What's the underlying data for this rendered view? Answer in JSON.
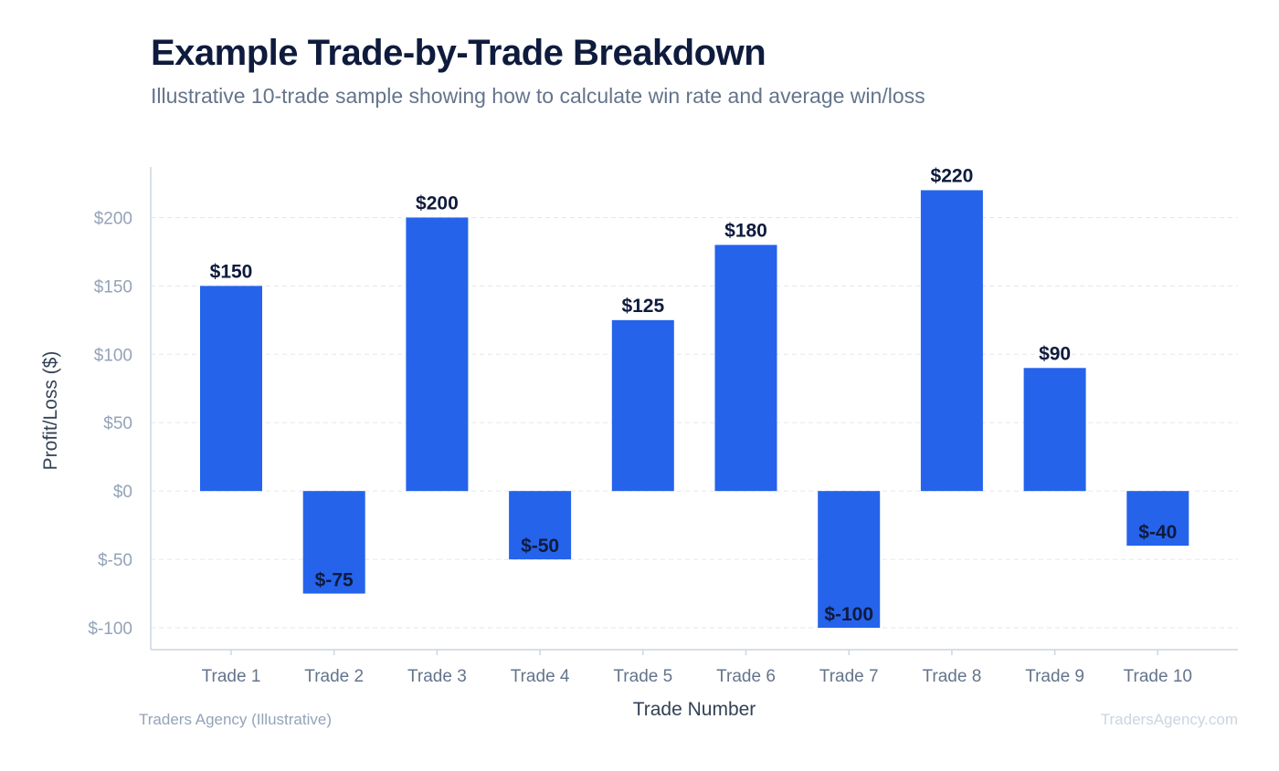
{
  "header": {
    "title": "Example Trade-by-Trade Breakdown",
    "subtitle": "Illustrative 10-trade sample showing how to calculate win rate and average win/loss"
  },
  "footer": {
    "source": "Traders Agency (Illustrative)",
    "brand": "TradersAgency.com"
  },
  "colors": {
    "bar": "#2563eb",
    "grid": "#e5e7eb",
    "axis": "#cbd5e1"
  },
  "chart_data": {
    "type": "bar",
    "title": "Example Trade-by-Trade Breakdown",
    "subtitle": "Illustrative 10-trade sample showing how to calculate win rate and average win/loss",
    "xlabel": "Trade Number",
    "ylabel": "Profit/Loss ($)",
    "categories": [
      "Trade 1",
      "Trade 2",
      "Trade 3",
      "Trade 4",
      "Trade 5",
      "Trade 6",
      "Trade 7",
      "Trade 8",
      "Trade 9",
      "Trade 10"
    ],
    "values": [
      150,
      -75,
      200,
      -50,
      125,
      180,
      -100,
      220,
      90,
      -40
    ],
    "data_labels": [
      "$150",
      "$-75",
      "$200",
      "$-50",
      "$125",
      "$180",
      "$-100",
      "$220",
      "$90",
      "$-40"
    ],
    "yticks": [
      -100,
      -50,
      0,
      50,
      100,
      150,
      200
    ],
    "ytick_labels": [
      "$-100",
      "$-50",
      "$0",
      "$50",
      "$100",
      "$150",
      "$200"
    ],
    "ylim": [
      -116,
      237
    ],
    "grid": true,
    "legend": "none"
  }
}
